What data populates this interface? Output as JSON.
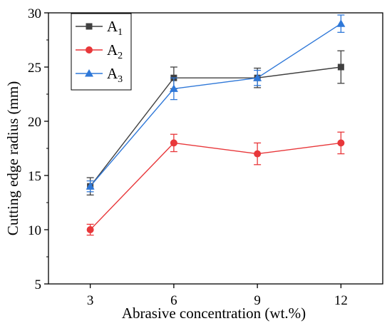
{
  "chart_data": {
    "type": "line",
    "title": "",
    "xlabel": "Abrasive concentration (wt.%)",
    "ylabel": "Cutting edge radius (mm)",
    "categories": [
      "3",
      "6",
      "9",
      "12"
    ],
    "x": [
      3,
      6,
      9,
      12
    ],
    "xlim": [
      1.5,
      13.5
    ],
    "ylim": [
      5,
      30
    ],
    "yticks": [
      5,
      10,
      15,
      20,
      25,
      30
    ],
    "grid": false,
    "legend_position": "top-left",
    "series": [
      {
        "name": "A",
        "name_subscript": "1",
        "marker": "square",
        "color": "#404040",
        "values": [
          14,
          24,
          24,
          25
        ],
        "errors": [
          0.8,
          1.0,
          0.9,
          1.5
        ]
      },
      {
        "name": "A",
        "name_subscript": "2",
        "marker": "circle",
        "color": "#e8373a",
        "values": [
          10,
          18,
          17,
          18
        ],
        "errors": [
          0.5,
          0.8,
          1.0,
          1.0
        ]
      },
      {
        "name": "A",
        "name_subscript": "3",
        "marker": "triangle",
        "color": "#2f78d8",
        "values": [
          14,
          23,
          24,
          29
        ],
        "errors": [
          0.5,
          1.0,
          0.7,
          0.8
        ]
      }
    ]
  }
}
